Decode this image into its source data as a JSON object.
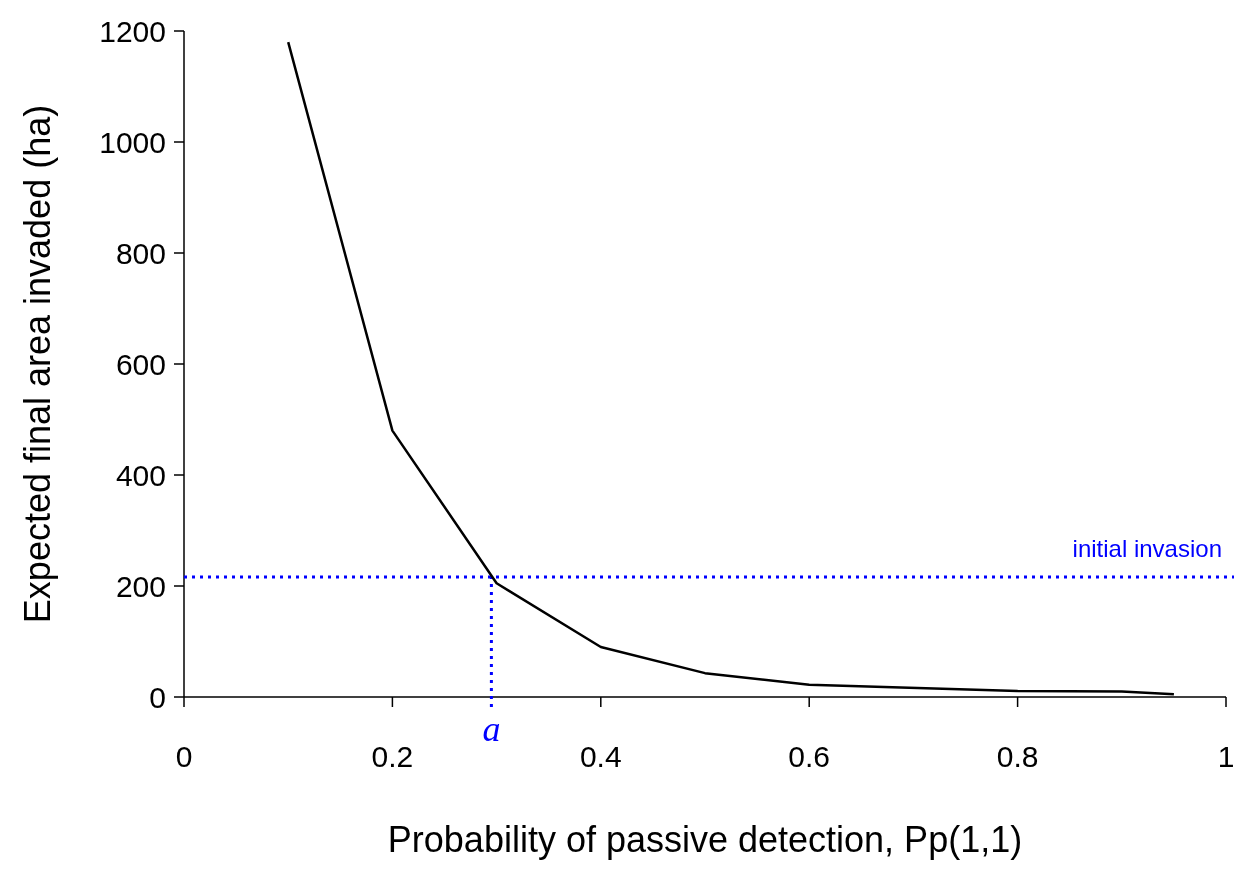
{
  "chart_data": {
    "type": "line",
    "xlabel": "Probability of passive detection, Pp(1,1)",
    "ylabel": "Expected final area invaded (ha)",
    "x": [
      0.1,
      0.2,
      0.3,
      0.4,
      0.5,
      0.6,
      0.8,
      0.9,
      0.95
    ],
    "series": [
      {
        "color": "#000000",
        "values": [
          1180,
          480,
          205,
          90,
          43,
          22,
          11,
          10,
          5
        ]
      }
    ],
    "xlim": [
      0,
      1
    ],
    "xticks": [
      0,
      0.2,
      0.4,
      0.6,
      0.8,
      1
    ],
    "ylim": [
      0,
      1200
    ],
    "yticks": [
      0,
      200,
      400,
      600,
      800,
      1000,
      1200
    ],
    "grid": false,
    "marker": "none",
    "line_style": "solid",
    "ref_lines": [
      {
        "axis": "y",
        "value": 216,
        "label": "initial invasion",
        "color": "#0000ff",
        "line_style": "dotted"
      },
      {
        "axis": "x",
        "value": 0.295,
        "label": "a",
        "color": "#0000ff",
        "line_style": "dotted"
      }
    ]
  }
}
